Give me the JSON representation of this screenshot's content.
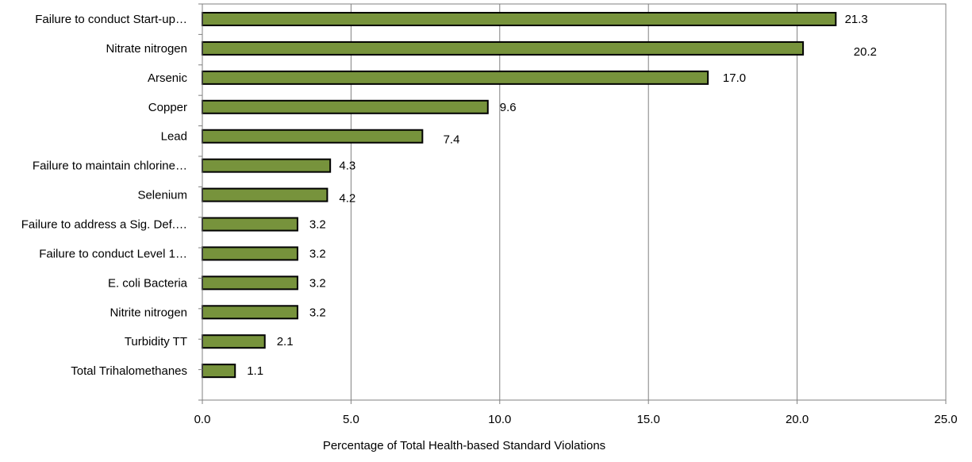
{
  "chart_data": {
    "type": "bar",
    "orientation": "horizontal",
    "categories": [
      "Failure to conduct Start-up…",
      "Nitrate nitrogen",
      "Arsenic",
      "Copper",
      "Lead",
      "Failure to maintain chlorine…",
      "Selenium",
      "Failure to address a Sig. Def.…",
      "Failure to conduct Level 1…",
      "E. coli Bacteria",
      "Nitrite nitrogen",
      "Turbidity TT",
      "Total Trihalomethanes"
    ],
    "values": [
      21.3,
      20.2,
      17.0,
      9.6,
      7.4,
      4.3,
      4.2,
      3.2,
      3.2,
      3.2,
      3.2,
      2.1,
      1.1
    ],
    "data_labels": [
      "21.3",
      "20.2",
      "17.0",
      "9.6",
      "7.4",
      "4.3",
      "4.2",
      "3.2",
      "3.2",
      "3.2",
      "3.2",
      "2.1",
      "1.1"
    ],
    "title": "",
    "xlabel": "Percentage of Total Health-based Standard Violations",
    "ylabel": "",
    "xlim": [
      0,
      25
    ],
    "x_ticks": [
      0,
      5,
      10,
      15,
      20,
      25
    ],
    "x_tick_labels": [
      "0.0",
      "5.0",
      "10.0",
      "15.0",
      "20.0",
      "25.0"
    ],
    "grid": "vertical",
    "legend": "none",
    "colors": {
      "bar_fill": "#77933c",
      "bar_stroke": "#000000",
      "gridline": "#808080",
      "axis": "#808080"
    }
  }
}
